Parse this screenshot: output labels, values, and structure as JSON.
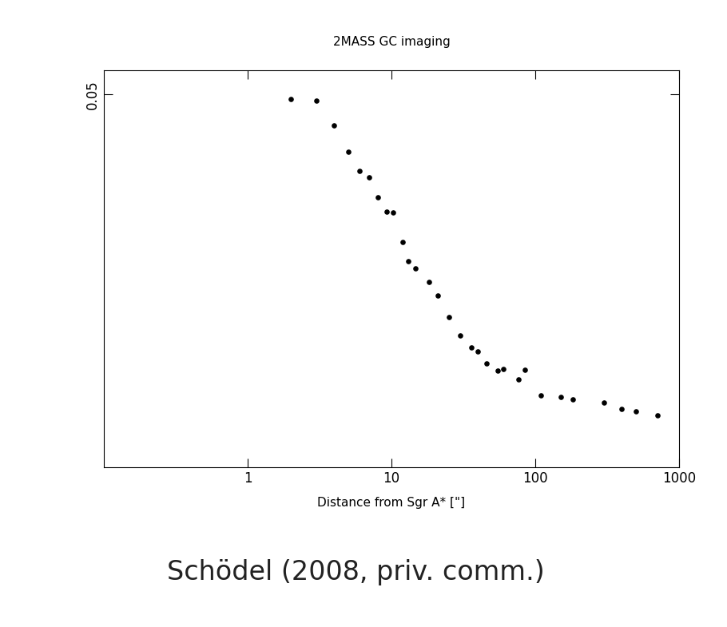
{
  "chart_data": {
    "type": "scatter",
    "title": "2MASS GC imaging",
    "x_label": "Distance from Sgr A* [\"]",
    "annotations": [
      "Schödel (2008, priv. comm.)"
    ],
    "x": [
      2,
      3,
      4,
      5,
      6,
      7,
      8,
      9.2,
      10.2,
      11.9,
      13,
      14.7,
      18.2,
      21,
      25,
      30,
      36,
      40,
      46,
      55,
      60,
      76,
      85,
      110,
      150,
      182,
      300,
      400,
      500,
      710
    ],
    "values": [
      0.0495,
      0.0493,
      0.0463,
      0.0432,
      0.0409,
      0.0401,
      0.0377,
      0.036,
      0.0359,
      0.0324,
      0.0301,
      0.0292,
      0.0276,
      0.026,
      0.0234,
      0.0212,
      0.0198,
      0.0193,
      0.0179,
      0.017,
      0.0172,
      0.016,
      0.0171,
      0.0141,
      0.0139,
      0.0136,
      0.0132,
      0.0124,
      0.0122,
      0.0117
    ],
    "color": "#000000",
    "marker": "o",
    "log": "x",
    "xlim": [
      0.1,
      1000
    ],
    "xticks": [
      1,
      10,
      100,
      1000
    ],
    "ylim": [
      0.0055,
      0.0529
    ],
    "yticks": [
      0.05
    ]
  }
}
